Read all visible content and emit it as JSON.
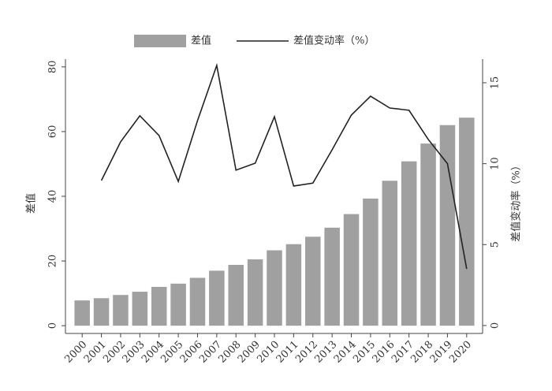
{
  "chart_data": {
    "type": "bar-line",
    "categories": [
      "2000",
      "2001",
      "2002",
      "2003",
      "2004",
      "2005",
      "2006",
      "2007",
      "2008",
      "2009",
      "2010",
      "2011",
      "2012",
      "2013",
      "2014",
      "2015",
      "2016",
      "2017",
      "2018",
      "2019",
      "2020"
    ],
    "series": [
      {
        "name": "差值",
        "type": "bar",
        "color": "#a0a0a0",
        "values": [
          7.8,
          8.5,
          9.5,
          10.5,
          12,
          13,
          14.8,
          17,
          18.8,
          20.5,
          23.3,
          25.2,
          27.5,
          30.3,
          34.5,
          39.3,
          44.8,
          50.8,
          56.3,
          62,
          64.3
        ]
      },
      {
        "name": "差值变动率（%）",
        "type": "line",
        "axis": "y2",
        "color": "#222222",
        "values": [
          null,
          8.96,
          11.35,
          12.96,
          11.74,
          8.9,
          12.66,
          16.07,
          9.6,
          10.03,
          12.9,
          8.62,
          8.8,
          10.86,
          13.0,
          14.17,
          13.44,
          13.3,
          11.5,
          10.0,
          3.5
        ]
      }
    ],
    "ylabel": "差值",
    "y2label": "差值变动率（%）",
    "ylim": [
      -2.4,
      82.4
    ],
    "yticks": [
      0,
      20,
      40,
      60,
      80
    ],
    "y2lim": [
      -0.49,
      16.46
    ],
    "y2ticks": [
      0,
      5,
      10,
      15
    ],
    "legend": "top"
  }
}
